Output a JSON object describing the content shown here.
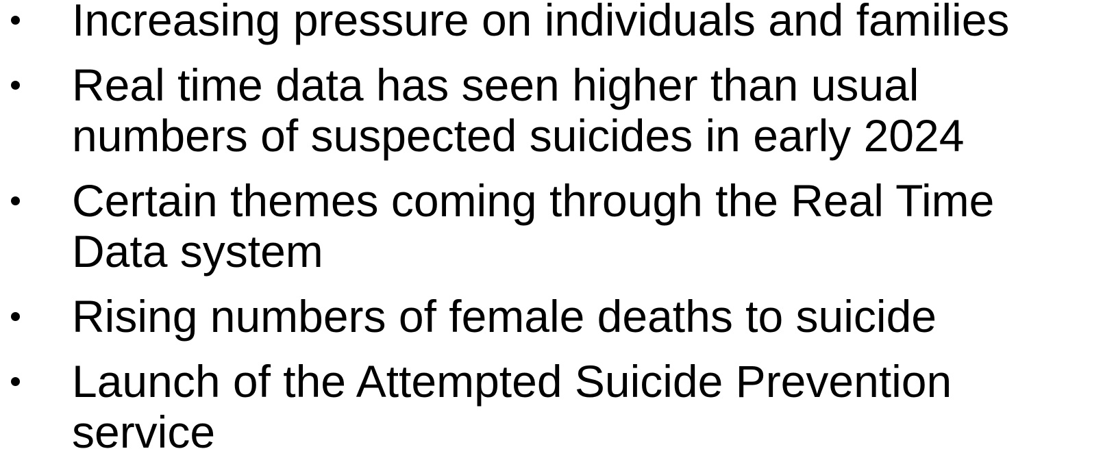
{
  "bullets": [
    {
      "lines": [
        "Increasing pressure on individuals and families"
      ]
    },
    {
      "lines": [
        "Real time data has seen higher than usual",
        "numbers of suspected suicides in early 2024"
      ]
    },
    {
      "lines": [
        "Certain themes coming through the Real Time",
        "Data system"
      ]
    },
    {
      "lines": [
        "Rising numbers of female deaths to suicide"
      ]
    },
    {
      "lines": [
        "Launch of the Attempted Suicide Prevention",
        "service"
      ]
    }
  ]
}
